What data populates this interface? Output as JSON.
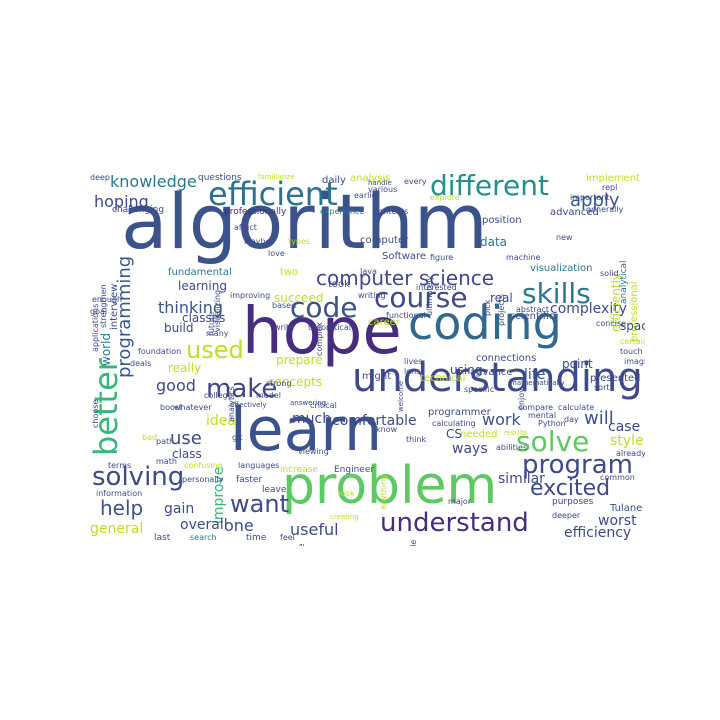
{
  "word_cloud": {
    "words": [
      {
        "text": "algorithm",
        "color": "#3b528b"
      },
      {
        "text": "hope",
        "color": "#472d7b"
      },
      {
        "text": "learn",
        "color": "#3b528b"
      },
      {
        "text": "problem",
        "color": "#5ec962"
      },
      {
        "text": "coding",
        "color": "#31688e"
      },
      {
        "text": "understanding",
        "color": "#3e4a89"
      },
      {
        "text": "efficient",
        "color": "#2c728e"
      },
      {
        "text": "course",
        "color": "#3e4a89"
      },
      {
        "text": "different",
        "color": "#21918c"
      },
      {
        "text": "code",
        "color": "#3b528b"
      },
      {
        "text": "skills",
        "color": "#2a788e"
      },
      {
        "text": "solve",
        "color": "#5ec962"
      },
      {
        "text": "better",
        "color": "#35b779"
      },
      {
        "text": "programming",
        "color": "#38588c"
      },
      {
        "text": "computer science",
        "color": "#3e4a89"
      },
      {
        "text": "used",
        "color": "#bddf26"
      },
      {
        "text": "make",
        "color": "#414487"
      },
      {
        "text": "program",
        "color": "#3e4a89"
      },
      {
        "text": "want",
        "color": "#3e4a89"
      },
      {
        "text": "solving",
        "color": "#3e4a89"
      },
      {
        "text": "understand",
        "color": "#472d7b"
      },
      {
        "text": "excited",
        "color": "#3e4a89"
      },
      {
        "text": "help",
        "color": "#3b528b"
      },
      {
        "text": "knowledge",
        "color": "#2a788e"
      },
      {
        "text": "hoping",
        "color": "#3e4a89"
      },
      {
        "text": "apply",
        "color": "#38588c"
      },
      {
        "text": "thinking",
        "color": "#3b528b"
      },
      {
        "text": "complexity",
        "color": "#3e4a89"
      },
      {
        "text": "use",
        "color": "#3e4a89"
      },
      {
        "text": "improve",
        "color": "#35b779"
      },
      {
        "text": "will",
        "color": "#3b528b"
      },
      {
        "text": "work",
        "color": "#3b528b"
      },
      {
        "text": "life",
        "color": "#3b528b"
      },
      {
        "text": "good",
        "color": "#3e4a89"
      },
      {
        "text": "useful",
        "color": "#3e4a89"
      },
      {
        "text": "one",
        "color": "#3e4a89"
      },
      {
        "text": "overall",
        "color": "#3e4a89"
      },
      {
        "text": "gain",
        "color": "#3e4a89"
      },
      {
        "text": "general",
        "color": "#bddf26"
      },
      {
        "text": "efficiency",
        "color": "#3e4a89"
      },
      {
        "text": "worst",
        "color": "#3e4a89"
      },
      {
        "text": "case",
        "color": "#3e4a89"
      },
      {
        "text": "style",
        "color": "#bddf26"
      },
      {
        "text": "ways",
        "color": "#3e4a89"
      },
      {
        "text": "similar",
        "color": "#3e4a89"
      },
      {
        "text": "comfortable",
        "color": "#3e4a89"
      },
      {
        "text": "much",
        "color": "#3e4a89"
      },
      {
        "text": "concepts",
        "color": "#bddf26"
      },
      {
        "text": "really",
        "color": "#bddf26"
      },
      {
        "text": "idea",
        "color": "#bddf26"
      },
      {
        "text": "class",
        "color": "#3e4a89"
      },
      {
        "text": "build",
        "color": "#3e4a89"
      },
      {
        "text": "classes",
        "color": "#3e4a89"
      },
      {
        "text": "learning",
        "color": "#3e4a89"
      },
      {
        "text": "world",
        "color": "#2a788e"
      },
      {
        "text": "interview",
        "color": "#3e4a89"
      },
      {
        "text": "data",
        "color": "#2a788e"
      },
      {
        "text": "real",
        "color": "#3e4a89"
      },
      {
        "text": "prepare",
        "color": "#bddf26"
      },
      {
        "text": "fundamental",
        "color": "#2a788e"
      },
      {
        "text": "succeed",
        "color": "#bddf26"
      },
      {
        "text": "took",
        "color": "#3e4a89"
      },
      {
        "text": "two",
        "color": "#bddf26"
      },
      {
        "text": "Software",
        "color": "#3e4a89"
      },
      {
        "text": "computer",
        "color": "#3e4a89"
      },
      {
        "text": "position",
        "color": "#3e4a89"
      },
      {
        "text": "visualization",
        "color": "#2a788e"
      },
      {
        "text": "efficiently",
        "color": "#bddf26"
      },
      {
        "text": "professional",
        "color": "#bddf26"
      },
      {
        "text": "scientific",
        "color": "#3e4a89"
      },
      {
        "text": "space",
        "color": "#3e4a89"
      },
      {
        "text": "point",
        "color": "#3e4a89"
      },
      {
        "text": "presented",
        "color": "#3e4a89"
      },
      {
        "text": "connections",
        "color": "#3e4a89"
      },
      {
        "text": "using",
        "color": "#3e4a89"
      },
      {
        "text": "advance",
        "color": "#3e4a89"
      },
      {
        "text": "technical",
        "color": "#bddf26"
      },
      {
        "text": "might",
        "color": "#3e4a89"
      },
      {
        "text": "career",
        "color": "#bddf26"
      },
      {
        "text": "programmer",
        "color": "#3e4a89"
      },
      {
        "text": "CS",
        "color": "#3e4a89"
      },
      {
        "text": "needed",
        "color": "#bddf26"
      },
      {
        "text": "Tulane",
        "color": "#3e4a89"
      },
      {
        "text": "professionally",
        "color": "#472d7b"
      },
      {
        "text": "advanced",
        "color": "#3e4a89"
      },
      {
        "text": "implement",
        "color": "#bddf26"
      },
      {
        "text": "analysis",
        "color": "#bddf26"
      },
      {
        "text": "daily",
        "color": "#3e4a89"
      },
      {
        "text": "questions",
        "color": "#3e4a89"
      },
      {
        "text": "deep",
        "color": "#3e4a89"
      },
      {
        "text": "challenging",
        "color": "#3e4a89"
      },
      {
        "text": "affect",
        "color": "#3e4a89"
      },
      {
        "text": "future",
        "color": "#3e4a89"
      },
      {
        "text": "love",
        "color": "#3e4a89"
      },
      {
        "text": "increase",
        "color": "#bddf26"
      },
      {
        "text": "Engineer",
        "color": "#3e4a89"
      },
      {
        "text": "languages",
        "color": "#3e4a89"
      },
      {
        "text": "faster",
        "color": "#3e4a89"
      },
      {
        "text": "leave",
        "color": "#3e4a89"
      },
      {
        "text": "time",
        "color": "#3e4a89"
      },
      {
        "text": "last",
        "color": "#3e4a89"
      },
      {
        "text": "search",
        "color": "#2a788e"
      },
      {
        "text": "feel",
        "color": "#3e4a89"
      },
      {
        "text": "purposes",
        "color": "#3e4a89"
      },
      {
        "text": "deeper",
        "color": "#3e4a89"
      },
      {
        "text": "abilities",
        "color": "#3e4a89"
      },
      {
        "text": "basics",
        "color": "#3e4a89"
      },
      {
        "text": "practice",
        "color": "#3e4a89"
      },
      {
        "text": "especially",
        "color": "#bddf26"
      },
      {
        "text": "think",
        "color": "#3e4a89"
      },
      {
        "text": "calculating",
        "color": "#3e4a89"
      },
      {
        "text": "mental",
        "color": "#3e4a89"
      },
      {
        "text": "calculate",
        "color": "#3e4a89"
      },
      {
        "text": "Python",
        "color": "#3e4a89"
      },
      {
        "text": "compare",
        "color": "#3e4a89"
      },
      {
        "text": "sort",
        "color": "#3e4a89"
      },
      {
        "text": "already",
        "color": "#3e4a89"
      },
      {
        "text": "common",
        "color": "#3e4a89"
      },
      {
        "text": "imagine",
        "color": "#3e4a89"
      },
      {
        "text": "touch",
        "color": "#3e4a89"
      },
      {
        "text": "certain",
        "color": "#bddf26"
      },
      {
        "text": "concise",
        "color": "#3e4a89"
      },
      {
        "text": "solid",
        "color": "#3e4a89"
      },
      {
        "text": "abstract",
        "color": "#3e4a89"
      },
      {
        "text": "machine",
        "color": "#3e4a89"
      },
      {
        "text": "new",
        "color": "#3e4a89"
      },
      {
        "text": "figure",
        "color": "#3e4a89"
      },
      {
        "text": "Java",
        "color": "#3e4a89"
      },
      {
        "text": "writing",
        "color": "#3e4a89"
      },
      {
        "text": "improving",
        "color": "#3e4a89"
      },
      {
        "text": "based",
        "color": "#3e4a89"
      },
      {
        "text": "write",
        "color": "#3e4a89"
      },
      {
        "text": "theoretical",
        "color": "#3e4a89"
      },
      {
        "text": "functional",
        "color": "#3e4a89"
      },
      {
        "text": "interested",
        "color": "#3e4a89"
      },
      {
        "text": "lives",
        "color": "#3e4a89"
      },
      {
        "text": "lens",
        "color": "#3e4a89"
      },
      {
        "text": "college",
        "color": "#3e4a89"
      },
      {
        "text": "strong",
        "color": "#3e4a89"
      },
      {
        "text": "critical",
        "color": "#3e4a89"
      },
      {
        "text": "model",
        "color": "#3e4a89"
      },
      {
        "text": "whatever",
        "color": "#3e4a89"
      },
      {
        "text": "bad",
        "color": "#bddf26"
      },
      {
        "text": "path",
        "color": "#3e4a89"
      },
      {
        "text": "math",
        "color": "#3e4a89"
      },
      {
        "text": "confusing",
        "color": "#bddf26"
      },
      {
        "text": "terms",
        "color": "#3e4a89"
      },
      {
        "text": "information",
        "color": "#3e4a89"
      },
      {
        "text": "personally",
        "color": "#3e4a89"
      },
      {
        "text": "knowledgeable",
        "color": "#3e4a89"
      },
      {
        "text": "goal",
        "color": "#3e4a89"
      },
      {
        "text": "enough",
        "color": "#3e4a89"
      },
      {
        "text": "choose",
        "color": "#3e4a89"
      },
      {
        "text": "applications",
        "color": "#3e4a89"
      },
      {
        "text": "strengthen",
        "color": "#3e4a89"
      },
      {
        "text": "visualizing",
        "color": "#3e4a89"
      },
      {
        "text": "Maybe",
        "color": "#3e4a89"
      },
      {
        "text": "types",
        "color": "#bddf26"
      },
      {
        "text": "complex",
        "color": "#3e4a89"
      },
      {
        "text": "experience",
        "color": "#2a788e"
      },
      {
        "text": "contexts",
        "color": "#3e4a89"
      },
      {
        "text": "earlier",
        "color": "#3e4a89"
      },
      {
        "text": "various",
        "color": "#3e4a89"
      },
      {
        "text": "familiarize",
        "color": "#bddf26"
      },
      {
        "text": "handle",
        "color": "#3e4a89"
      },
      {
        "text": "every",
        "color": "#3e4a89"
      },
      {
        "text": "explore",
        "color": "#bddf26"
      },
      {
        "text": "ultimately",
        "color": "#3e4a89"
      },
      {
        "text": "pick",
        "color": "#3e4a89"
      },
      {
        "text": "projects",
        "color": "#3e4a89"
      },
      {
        "text": "important",
        "color": "#3e4a89"
      },
      {
        "text": "generally",
        "color": "#3e4a89"
      },
      {
        "text": "repl",
        "color": "#3e4a89"
      },
      {
        "text": "analytical",
        "color": "#2a788e"
      },
      {
        "text": "analytics",
        "color": "#3e4a89"
      },
      {
        "text": "many",
        "color": "#3e4a89"
      },
      {
        "text": "foundation",
        "color": "#3e4a89"
      },
      {
        "text": "boost",
        "color": "#3e4a89"
      },
      {
        "text": "effectively",
        "color": "#3e4a89"
      },
      {
        "text": "git",
        "color": "#3e4a89"
      },
      {
        "text": "viewing",
        "color": "#3e4a89"
      },
      {
        "text": "look",
        "color": "#bddf26"
      },
      {
        "text": "creating",
        "color": "#bddf26"
      },
      {
        "text": "found",
        "color": "#3e4a89"
      },
      {
        "text": "anything",
        "color": "#bddf26"
      },
      {
        "text": "know",
        "color": "#3e4a89"
      },
      {
        "text": "major",
        "color": "#3e4a89"
      },
      {
        "text": "tackle",
        "color": "#3e4a89"
      },
      {
        "text": "specific",
        "color": "#3e4a89"
      },
      {
        "text": "mathematically",
        "color": "#3e4a89"
      },
      {
        "text": "day",
        "color": "#3e4a89"
      },
      {
        "text": "results",
        "color": "#bddf26"
      },
      {
        "text": "enjoy",
        "color": "#3e4a89"
      },
      {
        "text": "welcome",
        "color": "#3e4a89"
      },
      {
        "text": "answering",
        "color": "#3e4a89"
      },
      {
        "text": "deals",
        "color": "#3e4a89"
      }
    ]
  }
}
